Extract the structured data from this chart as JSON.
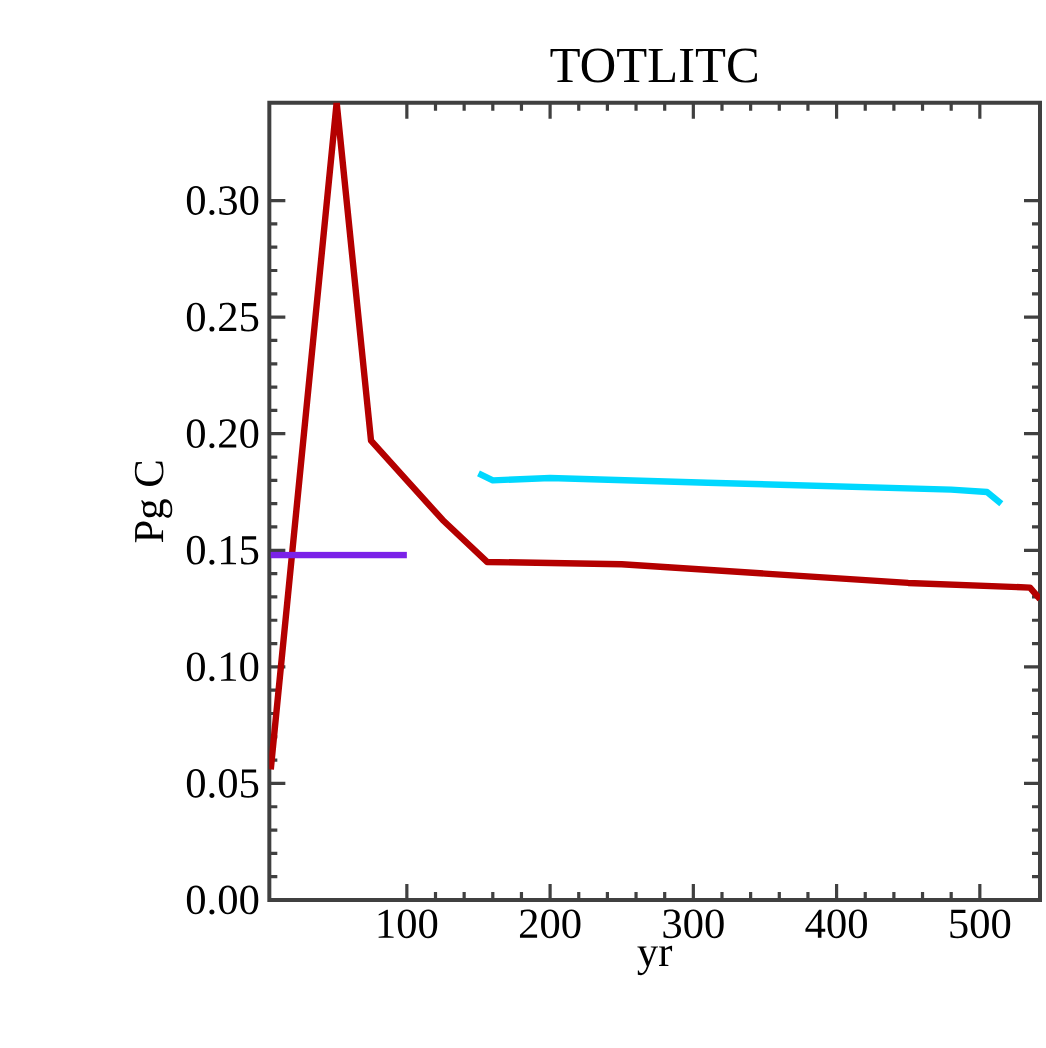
{
  "chart_data": {
    "type": "line",
    "title": "TOTLITC",
    "xlabel": "yr",
    "ylabel": "Pg C",
    "xlim": [
      4,
      542
    ],
    "ylim": [
      0,
      0.342
    ],
    "xticks": [
      100,
      200,
      300,
      400,
      500
    ],
    "yticks": [
      {
        "value": 0,
        "label": "0.00"
      },
      {
        "value": 0.05,
        "label": "0.05"
      },
      {
        "value": 0.1,
        "label": "0.10"
      },
      {
        "value": 0.15,
        "label": "0.15"
      },
      {
        "value": 0.2,
        "label": "0.20"
      },
      {
        "value": 0.25,
        "label": "0.25"
      },
      {
        "value": 0.3,
        "label": "0.30"
      }
    ],
    "series": [
      {
        "color": "#b40000",
        "x": [
          5,
          51,
          75,
          100,
          125,
          156,
          250,
          350,
          450,
          535,
          542
        ],
        "values": [
          0.056,
          0.342,
          0.197,
          0.18,
          0.163,
          0.145,
          0.144,
          0.14,
          0.136,
          0.134,
          0.129
        ]
      },
      {
        "color": "#7b22e8",
        "x": [
          5,
          100
        ],
        "values": [
          0.148,
          0.148
        ]
      },
      {
        "color": "#00d8ff",
        "x": [
          150,
          160,
          200,
          310,
          480,
          505,
          515
        ],
        "values": [
          0.183,
          0.18,
          0.181,
          0.179,
          0.176,
          0.175,
          0.17
        ]
      }
    ]
  }
}
